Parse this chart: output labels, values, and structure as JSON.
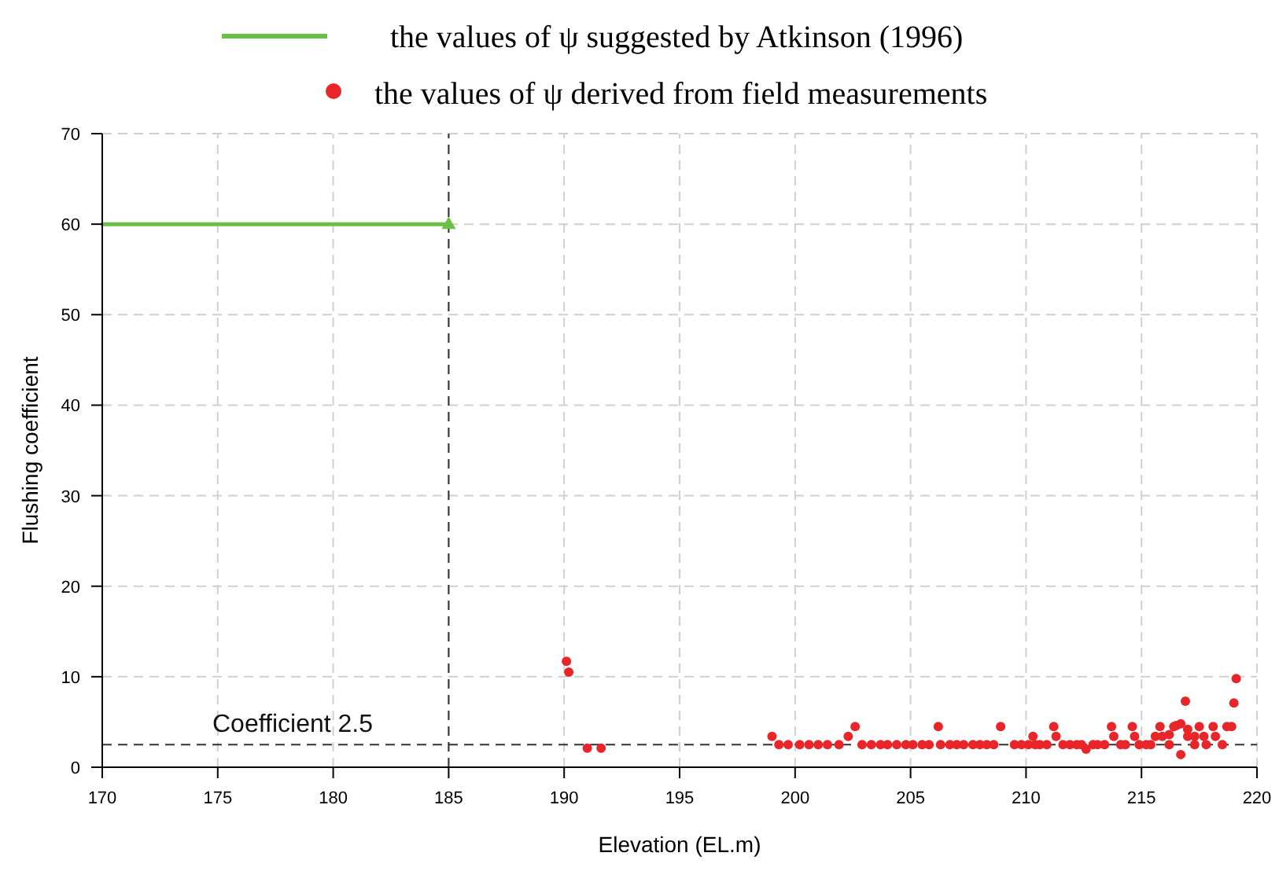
{
  "chart_data": {
    "type": "scatter",
    "xlabel": "Elevation (EL.m)",
    "ylabel": "Flushing coefficient",
    "xlim": [
      170,
      220
    ],
    "ylim": [
      0,
      70
    ],
    "xticks": [
      170,
      175,
      180,
      185,
      190,
      195,
      200,
      205,
      210,
      215,
      220
    ],
    "yticks": [
      0,
      10,
      20,
      30,
      40,
      50,
      60,
      70
    ],
    "grid": true,
    "legend": "top",
    "marker": "circle",
    "series": [
      {
        "type": "line",
        "name": "the values of ψ suggested by Atkinson (1996)",
        "color": "#6abf45",
        "x": [
          170,
          185
        ],
        "values": [
          60,
          60
        ],
        "marker": "none"
      },
      {
        "color": "#6abf45",
        "x": [
          185
        ],
        "values": [
          60
        ],
        "marker": "triangle"
      },
      {
        "name": "the values of ψ derived from field measurements",
        "color": "#e8262a",
        "x": [
          190.1,
          190.2,
          191.0,
          191.6,
          199.0,
          199.3,
          199.7,
          200.2,
          200.6,
          201.0,
          201.4,
          201.9,
          202.3,
          202.6,
          202.9,
          203.3,
          203.7,
          204.0,
          204.4,
          204.8,
          205.1,
          205.5,
          205.8,
          206.2,
          206.3,
          206.7,
          207.0,
          207.3,
          207.7,
          208.0,
          208.3,
          208.6,
          208.9,
          209.5,
          209.8,
          210.1,
          210.3,
          210.4,
          210.6,
          210.9,
          211.2,
          211.3,
          211.6,
          211.9,
          212.2,
          212.4,
          212.6,
          212.9,
          213.1,
          213.4,
          213.7,
          213.8,
          214.1,
          214.3,
          214.6,
          214.7,
          214.9,
          215.2,
          215.4,
          215.6,
          215.8,
          215.9,
          216.2,
          216.2,
          216.4,
          216.5,
          216.7,
          216.7,
          216.9,
          217.0,
          217.0,
          217.3,
          217.3,
          217.5,
          217.7,
          217.8,
          218.1,
          218.2,
          218.5,
          218.7,
          218.9,
          219.0,
          219.1
        ],
        "values": [
          11.7,
          10.5,
          2.1,
          2.1,
          3.4,
          2.5,
          2.5,
          2.5,
          2.5,
          2.5,
          2.5,
          2.5,
          3.4,
          4.5,
          2.5,
          2.5,
          2.5,
          2.5,
          2.5,
          2.5,
          2.5,
          2.5,
          2.5,
          4.5,
          2.5,
          2.5,
          2.5,
          2.5,
          2.5,
          2.5,
          2.5,
          2.5,
          4.5,
          2.5,
          2.5,
          2.5,
          3.4,
          2.5,
          2.5,
          2.5,
          4.5,
          3.4,
          2.5,
          2.5,
          2.5,
          2.5,
          2.0,
          2.5,
          2.5,
          2.5,
          4.5,
          3.4,
          2.5,
          2.5,
          4.5,
          3.4,
          2.5,
          2.5,
          2.5,
          3.4,
          4.5,
          3.4,
          3.6,
          2.5,
          4.5,
          4.6,
          4.8,
          1.4,
          7.3,
          4.2,
          3.4,
          3.4,
          2.5,
          4.5,
          3.4,
          2.5,
          4.5,
          3.4,
          2.5,
          4.5,
          4.5,
          7.1,
          9.8
        ]
      }
    ],
    "ref_lines": [
      {
        "axis": "y",
        "value": 2.5,
        "label": "Coefficient 2.5",
        "color": "#333333",
        "line_style": "dashed"
      },
      {
        "axis": "x",
        "value": 185,
        "color": "#333333",
        "line_style": "dashed"
      }
    ]
  }
}
